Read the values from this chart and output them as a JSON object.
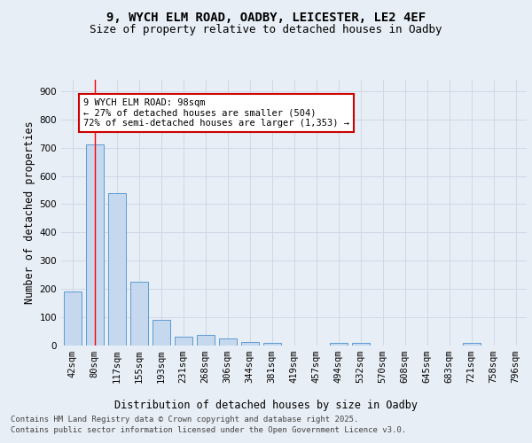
{
  "title_line1": "9, WYCH ELM ROAD, OADBY, LEICESTER, LE2 4EF",
  "title_line2": "Size of property relative to detached houses in Oadby",
  "xlabel": "Distribution of detached houses by size in Oadby",
  "ylabel": "Number of detached properties",
  "categories": [
    "42sqm",
    "80sqm",
    "117sqm",
    "155sqm",
    "193sqm",
    "231sqm",
    "268sqm",
    "306sqm",
    "344sqm",
    "381sqm",
    "419sqm",
    "457sqm",
    "494sqm",
    "532sqm",
    "570sqm",
    "608sqm",
    "645sqm",
    "683sqm",
    "721sqm",
    "758sqm",
    "796sqm"
  ],
  "values": [
    190,
    710,
    540,
    225,
    90,
    30,
    38,
    24,
    14,
    10,
    0,
    0,
    8,
    8,
    0,
    0,
    0,
    0,
    10,
    0,
    0
  ],
  "bar_color": "#c5d8ed",
  "bar_edge_color": "#5b9bd5",
  "grid_color": "#d0d8e8",
  "background_color": "#e8eef5",
  "red_line_x": 1,
  "annotation_text": "9 WYCH ELM ROAD: 98sqm\n← 27% of detached houses are smaller (504)\n72% of semi-detached houses are larger (1,353) →",
  "annotation_box_color": "#ffffff",
  "annotation_box_edge": "#cc0000",
  "footer_line1": "Contains HM Land Registry data © Crown copyright and database right 2025.",
  "footer_line2": "Contains public sector information licensed under the Open Government Licence v3.0.",
  "ylim": [
    0,
    940
  ],
  "yticks": [
    0,
    100,
    200,
    300,
    400,
    500,
    600,
    700,
    800,
    900
  ],
  "title_fontsize": 10,
  "subtitle_fontsize": 9,
  "axis_label_fontsize": 8.5,
  "tick_fontsize": 7.5,
  "footer_fontsize": 6.5,
  "annotation_fontsize": 7.5
}
